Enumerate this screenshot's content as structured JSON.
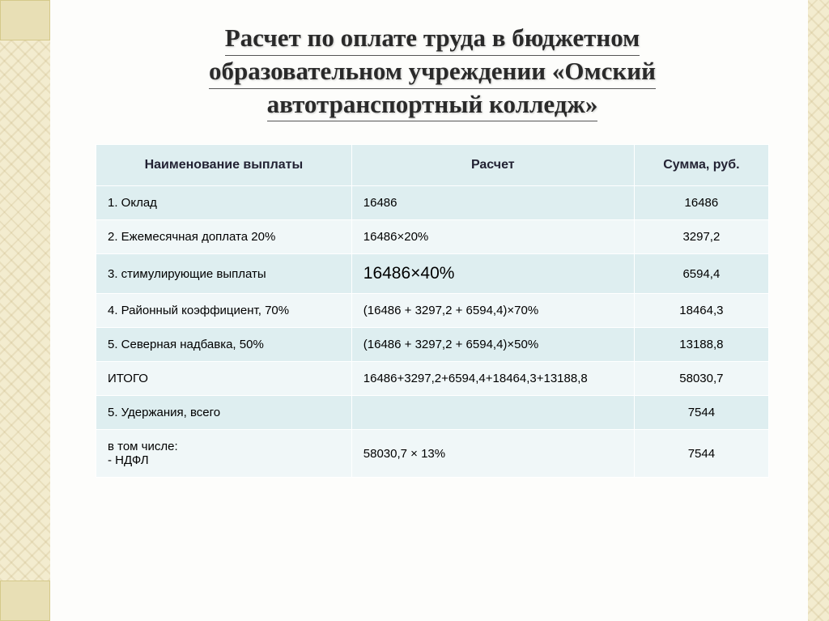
{
  "title_lines": [
    "Расчет по оплате труда в бюджетном",
    "образовательном учреждении «Омский",
    "автотранспортный колледж»"
  ],
  "table": {
    "headers": {
      "name": "Наименование выплаты",
      "calc": "Расчет",
      "sum": "Сумма, руб."
    },
    "rows": [
      {
        "name": "1. Оклад",
        "calc": "16486",
        "sum": "16486",
        "band": "odd"
      },
      {
        "name": "2. Ежемесячная доплата 20%",
        "calc": "16486×20%",
        "sum": "3297,2",
        "band": "even"
      },
      {
        "name": "3. стимулирующие выплаты",
        "calc": "16486×40%",
        "sum": "6594,4",
        "band": "odd",
        "big": true
      },
      {
        "name": "4. Районный коэффициент, 70%",
        "calc": "(16486 + 3297,2 + 6594,4)×70%",
        "sum": "18464,3",
        "band": "even"
      },
      {
        "name": "5. Северная надбавка, 50%",
        "calc": "(16486 + 3297,2 + 6594,4)×50%",
        "sum": "13188,8",
        "band": "odd"
      },
      {
        "name": "ИТОГО",
        "calc": "16486+3297,2+6594,4+18464,3+13188,8",
        "sum": "58030,7",
        "band": "even"
      },
      {
        "name": "5. Удержания, всего",
        "calc": "",
        "sum": "7544",
        "band": "odd"
      },
      {
        "name": "в том числе:\n- НДФЛ",
        "calc": "58030,7 × 13%",
        "sum": "7544",
        "band": "even"
      }
    ]
  },
  "colors": {
    "header_bg": "#deeef0",
    "row_odd": "#deeef0",
    "row_even": "#f0f7f8",
    "border_bg": "#f3eccf"
  }
}
